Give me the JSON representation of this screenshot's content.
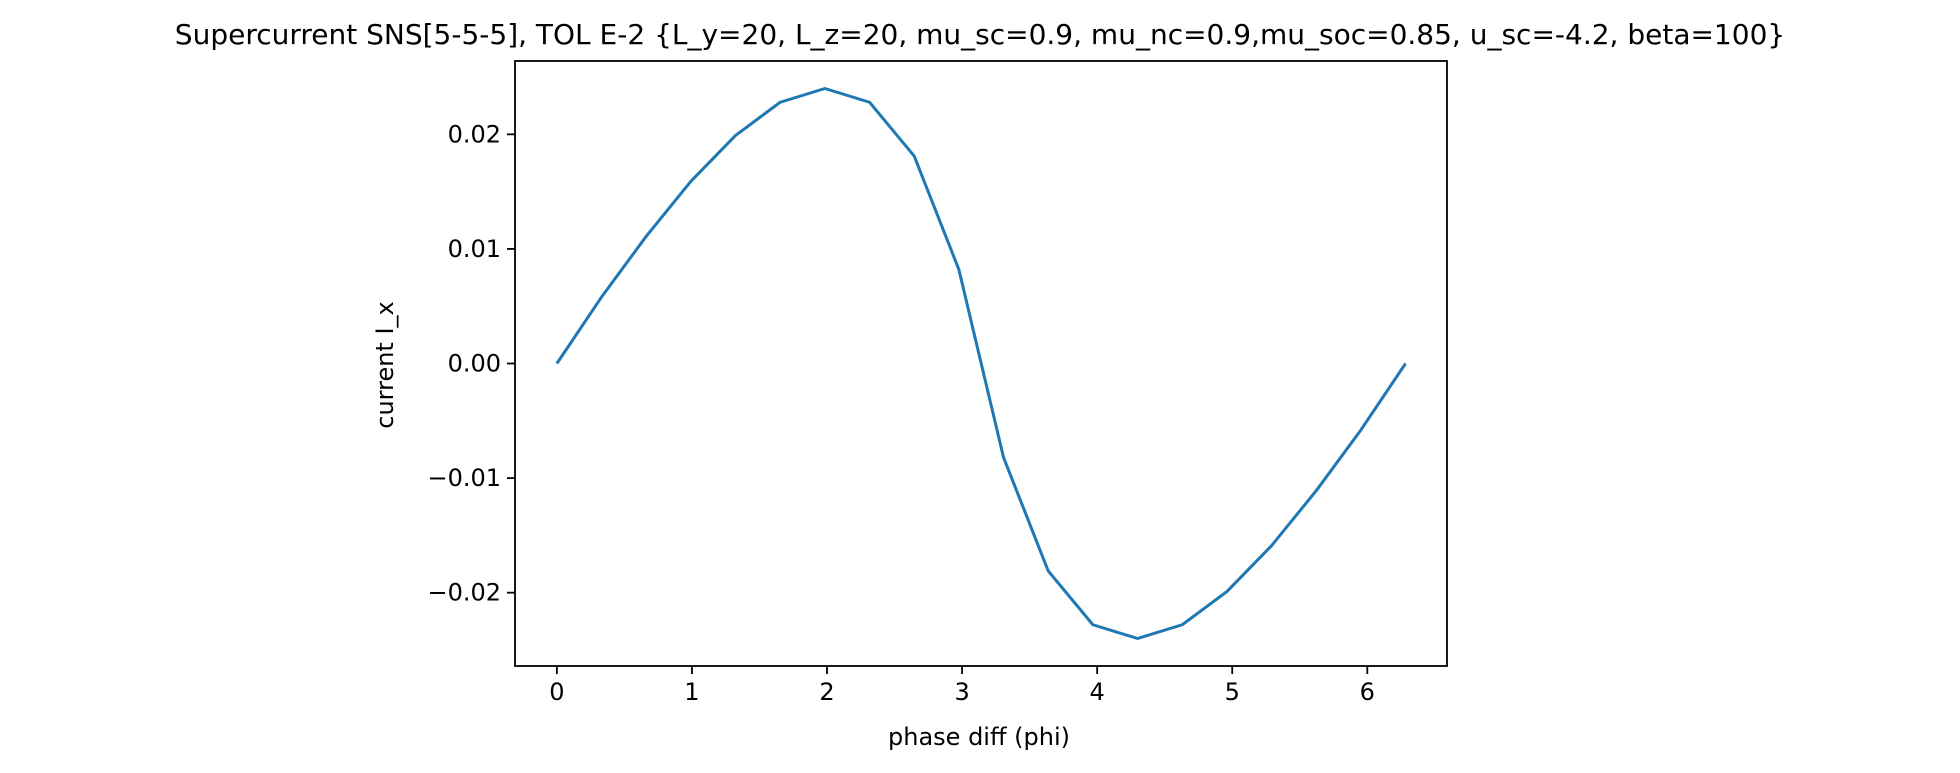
{
  "chart_data": {
    "type": "line",
    "title": "Supercurrent SNS[5-5-5], TOL E-2 {L_y=20, L_z=20, mu_sc=0.9, mu_nc=0.9,mu_soc=0.85, u_sc=-4.2, beta=100}",
    "xlabel": "phase diff (phi)",
    "ylabel": "current I_x",
    "xlim": [
      -0.31,
      6.59
    ],
    "ylim": [
      -0.0264,
      0.0264
    ],
    "xticks": [
      0,
      1,
      2,
      3,
      4,
      5,
      6
    ],
    "xtick_labels": [
      "0",
      "1",
      "2",
      "3",
      "4",
      "5",
      "6"
    ],
    "yticks": [
      0.02,
      0.01,
      0.0,
      -0.01,
      -0.02
    ],
    "ytick_labels": [
      "0.02",
      "0.01",
      "0.00",
      "−0.01",
      "−0.02"
    ],
    "grid": false,
    "color": "#1f77b4",
    "series": [
      {
        "x": [
          0.0,
          0.3307,
          0.6614,
          0.9921,
          1.3228,
          1.6535,
          1.9842,
          2.3149,
          2.6456,
          2.9762,
          3.3069,
          3.6376,
          3.9683,
          4.299,
          4.6297,
          4.9604,
          5.2911,
          5.6218,
          5.9525,
          6.2832
        ],
        "y": [
          0.0,
          0.0058,
          0.0111,
          0.0159,
          0.0199,
          0.0228,
          0.024,
          0.0228,
          0.0181,
          0.0082,
          -0.0082,
          -0.0181,
          -0.0228,
          -0.024,
          -0.0228,
          -0.0199,
          -0.0159,
          -0.0111,
          -0.0058,
          0.0
        ]
      }
    ]
  }
}
